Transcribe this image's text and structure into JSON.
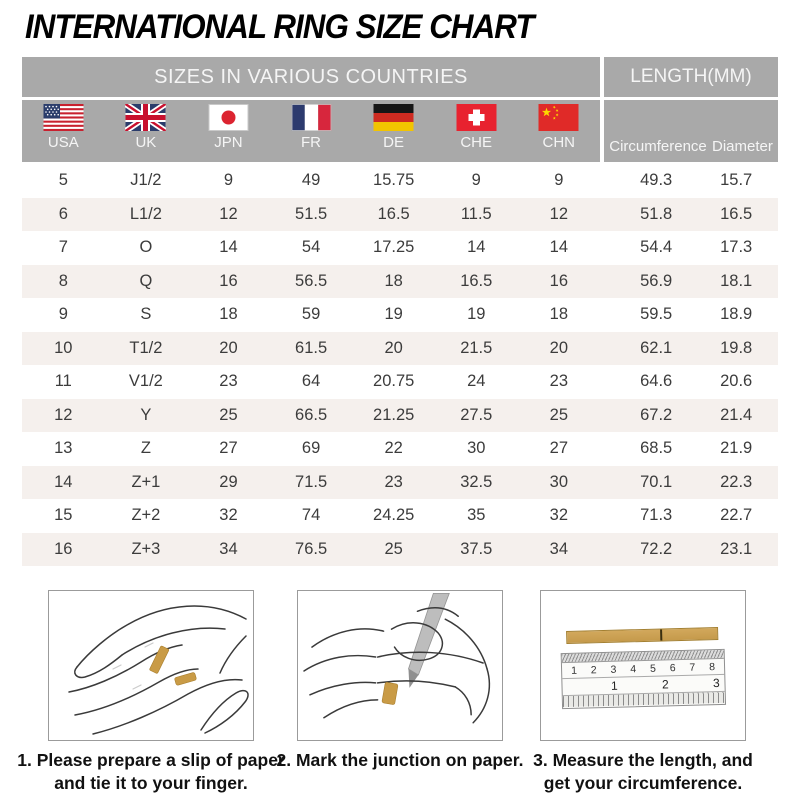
{
  "title": "INTERNATIONAL RING SIZE CHART",
  "table": {
    "section_headers": {
      "sizes": "SIZES IN VARIOUS COUNTRIES",
      "length": "LENGTH(MM)"
    },
    "countries": [
      {
        "code": "USA",
        "flag": "usa-flag-icon"
      },
      {
        "code": "UK",
        "flag": "uk-flag-icon"
      },
      {
        "code": "JPN",
        "flag": "japan-flag-icon"
      },
      {
        "code": "FR",
        "flag": "france-flag-icon"
      },
      {
        "code": "DE",
        "flag": "germany-flag-icon"
      },
      {
        "code": "CHE",
        "flag": "switzerland-flag-icon"
      },
      {
        "code": "CHN",
        "flag": "china-flag-icon"
      }
    ],
    "length_columns": {
      "circumference": "Circumference",
      "diameter": "Diameter"
    },
    "rows": [
      [
        "5",
        "J1/2",
        "9",
        "49",
        "15.75",
        "9",
        "9",
        "49.3",
        "15.7"
      ],
      [
        "6",
        "L1/2",
        "12",
        "51.5",
        "16.5",
        "11.5",
        "12",
        "51.8",
        "16.5"
      ],
      [
        "7",
        "O",
        "14",
        "54",
        "17.25",
        "14",
        "14",
        "54.4",
        "17.3"
      ],
      [
        "8",
        "Q",
        "16",
        "56.5",
        "18",
        "16.5",
        "16",
        "56.9",
        "18.1"
      ],
      [
        "9",
        "S",
        "18",
        "59",
        "19",
        "19",
        "18",
        "59.5",
        "18.9"
      ],
      [
        "10",
        "T1/2",
        "20",
        "61.5",
        "20",
        "21.5",
        "20",
        "62.1",
        "19.8"
      ],
      [
        "11",
        "V1/2",
        "23",
        "64",
        "20.75",
        "24",
        "23",
        "64.6",
        "20.6"
      ],
      [
        "12",
        "Y",
        "25",
        "66.5",
        "21.25",
        "27.5",
        "25",
        "67.2",
        "21.4"
      ],
      [
        "13",
        "Z",
        "27",
        "69",
        "22",
        "30",
        "27",
        "68.5",
        "21.9"
      ],
      [
        "14",
        "Z+1",
        "29",
        "71.5",
        "23",
        "32.5",
        "30",
        "70.1",
        "22.3"
      ],
      [
        "15",
        "Z+2",
        "32",
        "74",
        "24.25",
        "35",
        "32",
        "71.3",
        "22.7"
      ],
      [
        "16",
        "Z+3",
        "34",
        "76.5",
        "25",
        "37.5",
        "34",
        "72.2",
        "23.1"
      ]
    ]
  },
  "instructions": [
    {
      "text": "1. Please prepare a slip of paper\nand tie it to your finger."
    },
    {
      "text": "2. Mark the junction on paper."
    },
    {
      "text": "3. Measure the length, and\nget your circumference."
    }
  ],
  "ruler": {
    "cm_numbers": [
      "1",
      "2",
      "3",
      "4",
      "5",
      "6",
      "7",
      "8"
    ],
    "inch_numbers": [
      "1",
      "2",
      "3"
    ]
  },
  "colors": {
    "header_gray": "#a9a9a9",
    "header_text": "#f5f5f5",
    "row_alt": "#f5f0ed",
    "data_text": "#3c3c3c",
    "box_border": "#9b9b9b",
    "strip_gold": "#c59a4b",
    "strip_gold_light": "#d2a85c"
  }
}
